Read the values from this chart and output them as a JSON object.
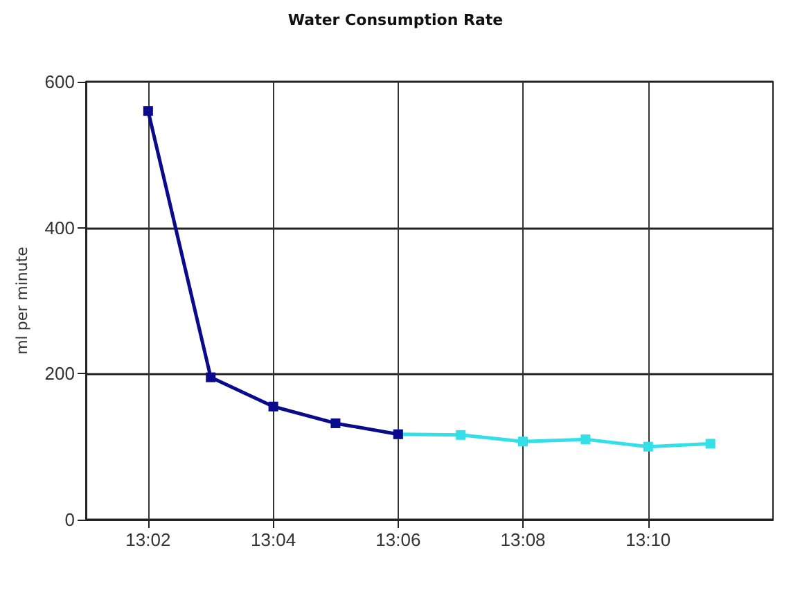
{
  "chart_data": {
    "type": "line",
    "title": "Water Consumption Rate",
    "ylabel": "ml per minute",
    "x": [
      13.0333,
      13.05,
      13.0667,
      13.0833,
      13.1
    ],
    "series": [
      {
        "color": "#0a0a8c",
        "values": [
          560,
          195,
          155,
          132,
          117
        ]
      },
      {
        "color": "#33e0e8",
        "x": [
          13.1,
          13.1167,
          13.1333,
          13.15,
          13.1667,
          13.1833
        ],
        "values": [
          117,
          116,
          107,
          110,
          100,
          104
        ]
      }
    ],
    "xlim": [
      13.0167,
      13.2
    ],
    "xticks": [
      {
        "value": 13.0333,
        "label": "13:02"
      },
      {
        "value": 13.0667,
        "label": "13:04"
      },
      {
        "value": 13.1,
        "label": "13:06"
      },
      {
        "value": 13.1333,
        "label": "13:08"
      },
      {
        "value": 13.1667,
        "label": "13:10"
      }
    ],
    "ylim": [
      0,
      600
    ],
    "yticks": [
      0,
      200,
      400,
      600
    ],
    "grid": true,
    "marker": "square",
    "line_style": "solid"
  }
}
